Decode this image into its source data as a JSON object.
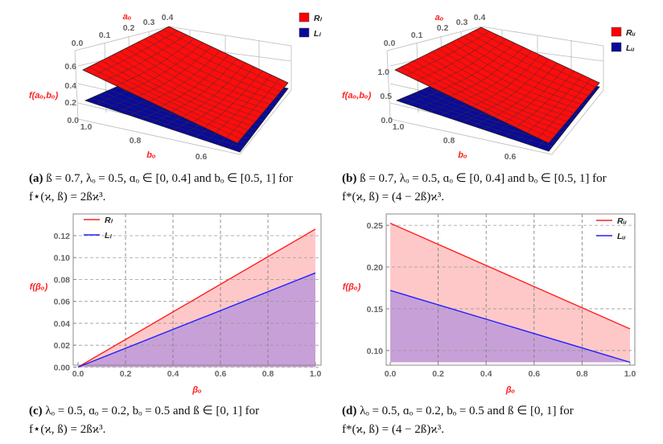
{
  "chart_data": [
    {
      "type": "surface3d",
      "panel": "(a)",
      "caption": "ß = 0.7, λₒ = 0.5, ɑₒ ∈ [0, 0.4] and bₒ ∈ [0.5, 1] for",
      "caption_line2": "f⋆(ϰ, ß) = 2ßϰ³.",
      "xlabel": "aₒ",
      "ylabel": "bₒ",
      "zlabel": "f(aₒ,bₒ)",
      "x_ticks": [
        "0.0",
        "0.1",
        "0.2",
        "0.3",
        "0.4"
      ],
      "y_ticks": [
        "1.0",
        "0.8",
        "0.6"
      ],
      "z_ticks": [
        "0.6",
        "0.4",
        "0.2",
        "0.0"
      ],
      "xlim": [
        0,
        0.4
      ],
      "ylim": [
        0.5,
        1
      ],
      "series": [
        {
          "name": "Rₗ",
          "color": "#ff0000"
        },
        {
          "name": "Lₗ",
          "color": "#0a0a9a"
        }
      ]
    },
    {
      "type": "surface3d",
      "panel": "(b)",
      "caption": "ß = 0.7, λₒ = 0.5, ɑₒ ∈ [0, 0.4] and bₒ ∈ [0.5, 1] for",
      "caption_line2": "f*(ϰ, ß) = (4 − 2ß)ϰ³.",
      "xlabel": "aₒ",
      "ylabel": "bₒ",
      "zlabel": "f(aₒ,bₒ)",
      "x_ticks": [
        "0.0",
        "0.1",
        "0.2",
        "0.3",
        "0.4"
      ],
      "y_ticks": [
        "1.0",
        "0.8",
        "0.6"
      ],
      "z_ticks": [
        "1.0",
        "0.5",
        "0.0"
      ],
      "xlim": [
        0,
        0.4
      ],
      "ylim": [
        0.5,
        1
      ],
      "series": [
        {
          "name": "Rᵤ",
          "color": "#ff0000"
        },
        {
          "name": "Lᵤ",
          "color": "#0a0a9a"
        }
      ]
    },
    {
      "type": "area",
      "panel": "(c)",
      "caption": "λₒ = 0.5, ɑₒ = 0.2, bₒ = 0.5 and ß ∈ [0, 1] for",
      "caption_line2": "f⋆(ϰ, ß) = 2ßϰ³.",
      "xlabel": "βₒ",
      "ylabel": "f(βₒ)",
      "xlim": [
        0,
        1
      ],
      "ylim": [
        -0.005,
        0.13
      ],
      "x_ticks": [
        "0.0",
        "0.2",
        "0.4",
        "0.6",
        "0.8",
        "1.0"
      ],
      "y_ticks": [
        "0.00",
        "0.02",
        "0.04",
        "0.06",
        "0.08",
        "0.10",
        "0.12"
      ],
      "grid": true,
      "legend": "top-left",
      "fill_base": 0,
      "x": [
        0,
        1
      ],
      "series": [
        {
          "name": "Rₗ",
          "color": "#ff2020",
          "values": [
            0,
            0.126
          ]
        },
        {
          "name": "Lₗ",
          "color": "#2020ff",
          "values": [
            0,
            0.086
          ]
        }
      ]
    },
    {
      "type": "area",
      "panel": "(d)",
      "caption": "λₒ = 0.5, ɑₒ = 0.2, bₒ = 0.5 and ß ∈ [0, 1] for",
      "caption_line2": "f*(ϰ, ß) = (4 − 2ß)ϰ³.",
      "xlabel": "βₒ",
      "ylabel": "f(βₒ)",
      "xlim": [
        0,
        1
      ],
      "ylim": [
        0.08,
        0.258
      ],
      "x_ticks": [
        "0.0",
        "0.2",
        "0.4",
        "0.6",
        "0.8",
        "1.0"
      ],
      "y_ticks": [
        "0.10",
        "0.15",
        "0.20",
        "0.25"
      ],
      "grid": true,
      "legend": "top-right",
      "fill_base": 0.086,
      "x": [
        0,
        1
      ],
      "series": [
        {
          "name": "Rᵤ",
          "color": "#ff2020",
          "values": [
            0.2525,
            0.126
          ]
        },
        {
          "name": "Lᵤ",
          "color": "#2020ff",
          "values": [
            0.172,
            0.086
          ]
        }
      ]
    }
  ]
}
